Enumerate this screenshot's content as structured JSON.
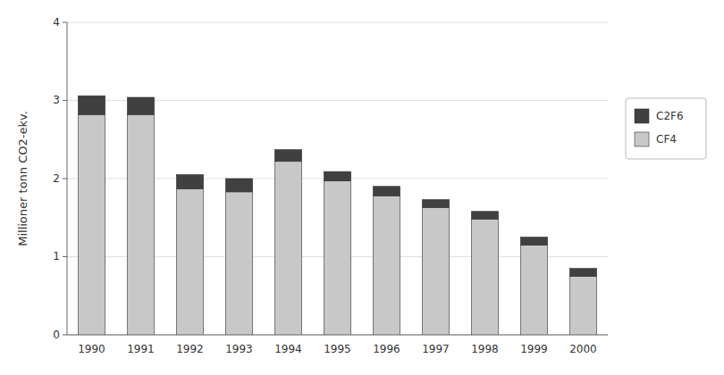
{
  "chart_data": {
    "type": "bar",
    "stacked": true,
    "categories": [
      "1990",
      "1991",
      "1992",
      "1993",
      "1994",
      "1995",
      "1996",
      "1997",
      "1998",
      "1999",
      "2000"
    ],
    "series": [
      {
        "name": "CF4",
        "color": "#c8c8c8",
        "values": [
          2.82,
          2.82,
          1.87,
          1.83,
          2.22,
          1.97,
          1.78,
          1.63,
          1.48,
          1.15,
          0.75
        ]
      },
      {
        "name": "C2F6",
        "color": "#404040",
        "values": [
          0.24,
          0.22,
          0.18,
          0.17,
          0.15,
          0.12,
          0.12,
          0.1,
          0.1,
          0.1,
          0.1
        ]
      }
    ],
    "ylabel": "Millioner tonn CO2-ekv.",
    "ylim": [
      0,
      4
    ],
    "yticks": [
      0,
      1,
      2,
      3,
      4
    ],
    "grid": true,
    "legend": "right"
  }
}
